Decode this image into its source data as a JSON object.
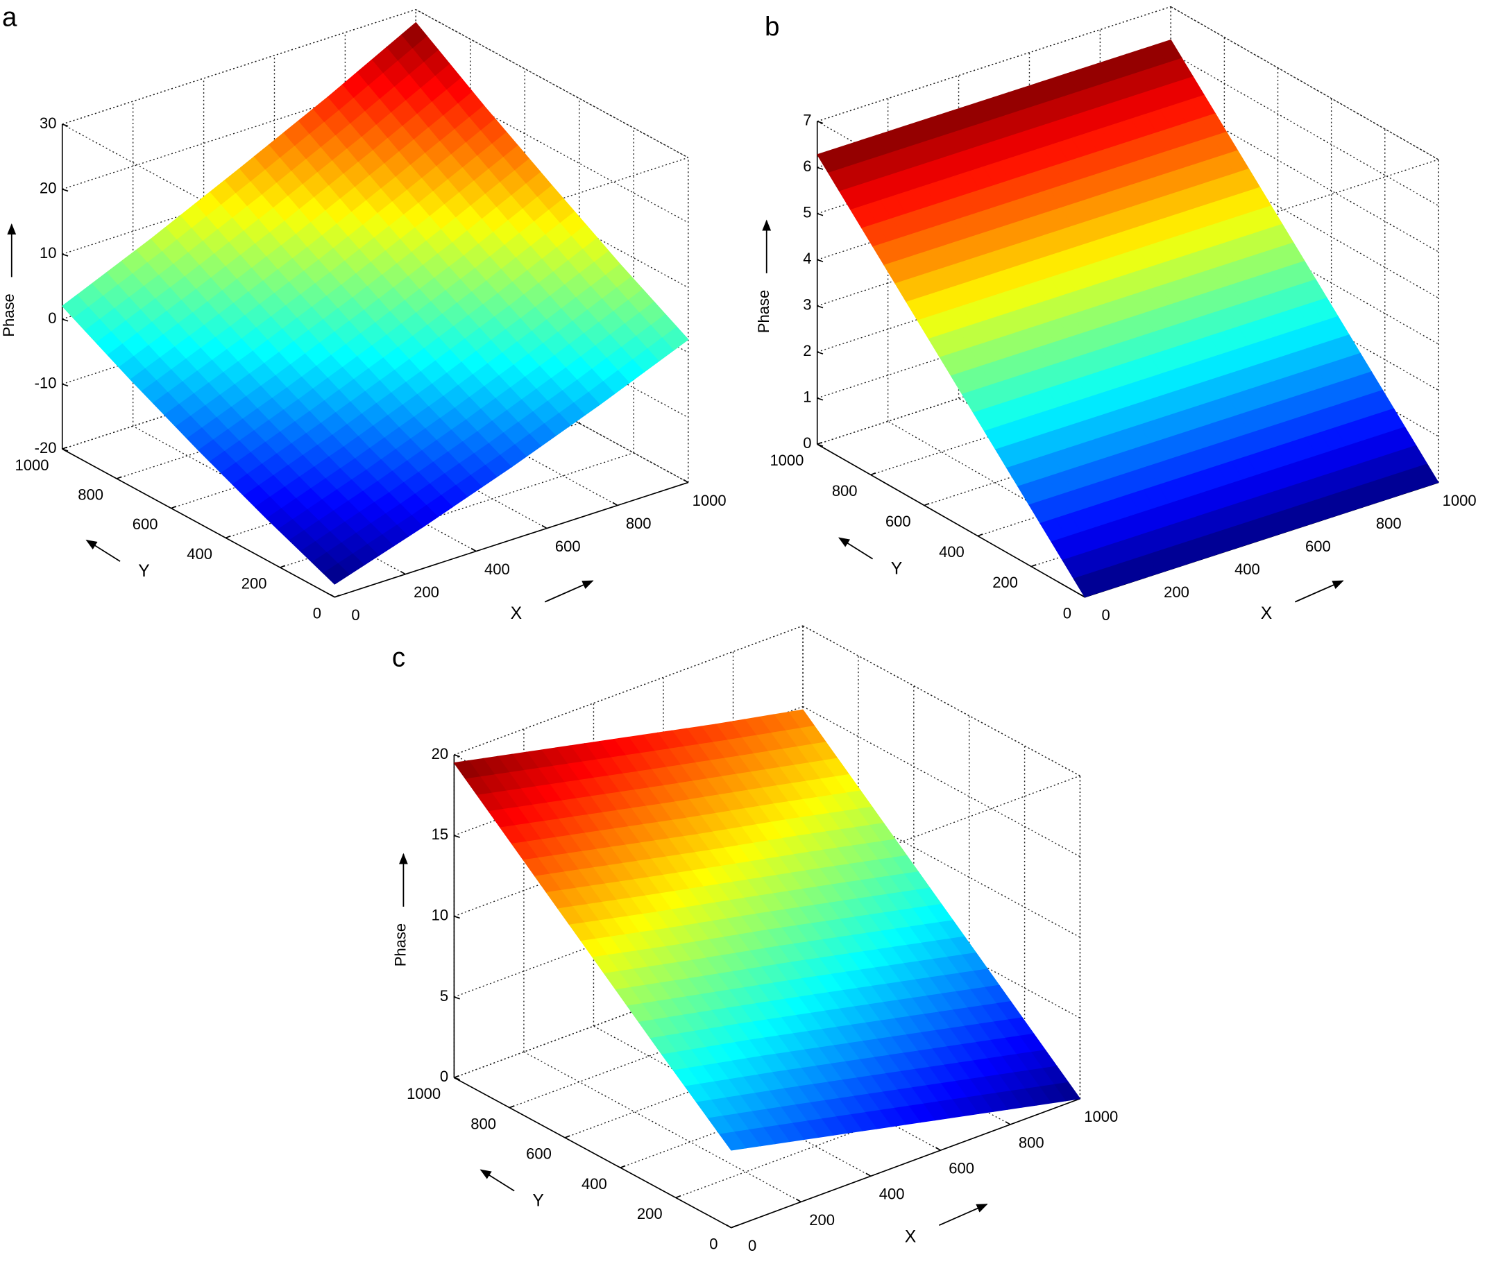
{
  "chart_data": [
    {
      "type": "surface",
      "panel_label": "a",
      "xlabel": "X",
      "ylabel": "Y",
      "zlabel": "Phase",
      "colormap": "jet",
      "grid": true,
      "x": [
        0,
        250,
        500,
        750,
        1000
      ],
      "y": [
        0,
        250,
        500,
        750,
        1000
      ],
      "z": [
        [
          -18,
          -13.6,
          -8.8,
          -3.6,
          2
        ],
        [
          -13.6,
          -8.8,
          -3.6,
          2,
          7.9
        ],
        [
          -8.8,
          -3.6,
          2,
          7.9,
          14.3
        ],
        [
          -3.6,
          2,
          7.9,
          14.3,
          20.9
        ],
        [
          2,
          7.9,
          14.3,
          20.9,
          28
        ]
      ],
      "xlim": [
        0,
        1000
      ],
      "ylim": [
        0,
        1000
      ],
      "zlim": [
        -20,
        30
      ],
      "xticks": [
        0,
        200,
        400,
        600,
        800,
        1000
      ],
      "yticks": [
        0,
        200,
        400,
        600,
        800,
        1000
      ],
      "zticks": [
        -20,
        -10,
        0,
        10,
        20,
        30
      ]
    },
    {
      "type": "surface",
      "panel_label": "b",
      "xlabel": "X",
      "ylabel": "Y",
      "zlabel": "Phase",
      "colormap": "jet",
      "grid": true,
      "x": [
        0,
        250,
        500,
        750,
        1000
      ],
      "y": [
        0,
        250,
        500,
        750,
        1000
      ],
      "z": [
        [
          0,
          0,
          0,
          0,
          0
        ],
        [
          1.57,
          1.57,
          1.57,
          1.57,
          1.57
        ],
        [
          3.14,
          3.14,
          3.14,
          3.14,
          3.14
        ],
        [
          4.71,
          4.71,
          4.71,
          4.71,
          4.71
        ],
        [
          6.28,
          6.28,
          6.28,
          6.28,
          6.28
        ]
      ],
      "xlim": [
        0,
        1000
      ],
      "ylim": [
        0,
        1000
      ],
      "zlim": [
        0,
        7
      ],
      "xticks": [
        0,
        200,
        400,
        600,
        800,
        1000
      ],
      "yticks": [
        0,
        200,
        400,
        600,
        800,
        1000
      ],
      "zticks": [
        0,
        1,
        2,
        3,
        4,
        5,
        6,
        7
      ]
    },
    {
      "type": "surface",
      "panel_label": "c",
      "xlabel": "X",
      "ylabel": "Y",
      "zlabel": "Phase",
      "colormap": "jet",
      "grid": true,
      "x": [
        0,
        250,
        500,
        750,
        1000
      ],
      "y": [
        0,
        250,
        500,
        750,
        1000
      ],
      "z": [
        [
          4.8,
          3.6,
          2.4,
          1.2,
          0
        ],
        [
          8.4,
          7.3,
          6.1,
          4.9,
          3.7
        ],
        [
          12.1,
          10.9,
          9.8,
          8.6,
          7.4
        ],
        [
          15.8,
          14.6,
          13.4,
          12.3,
          11.1
        ],
        [
          19.5,
          18.3,
          17.1,
          15.9,
          14.8
        ]
      ],
      "xlim": [
        0,
        1000
      ],
      "ylim": [
        0,
        1000
      ],
      "zlim": [
        0,
        20
      ],
      "xticks": [
        0,
        200,
        400,
        600,
        800,
        1000
      ],
      "yticks": [
        0,
        200,
        400,
        600,
        800,
        1000
      ],
      "zticks": [
        0,
        5,
        10,
        15,
        20
      ]
    }
  ]
}
